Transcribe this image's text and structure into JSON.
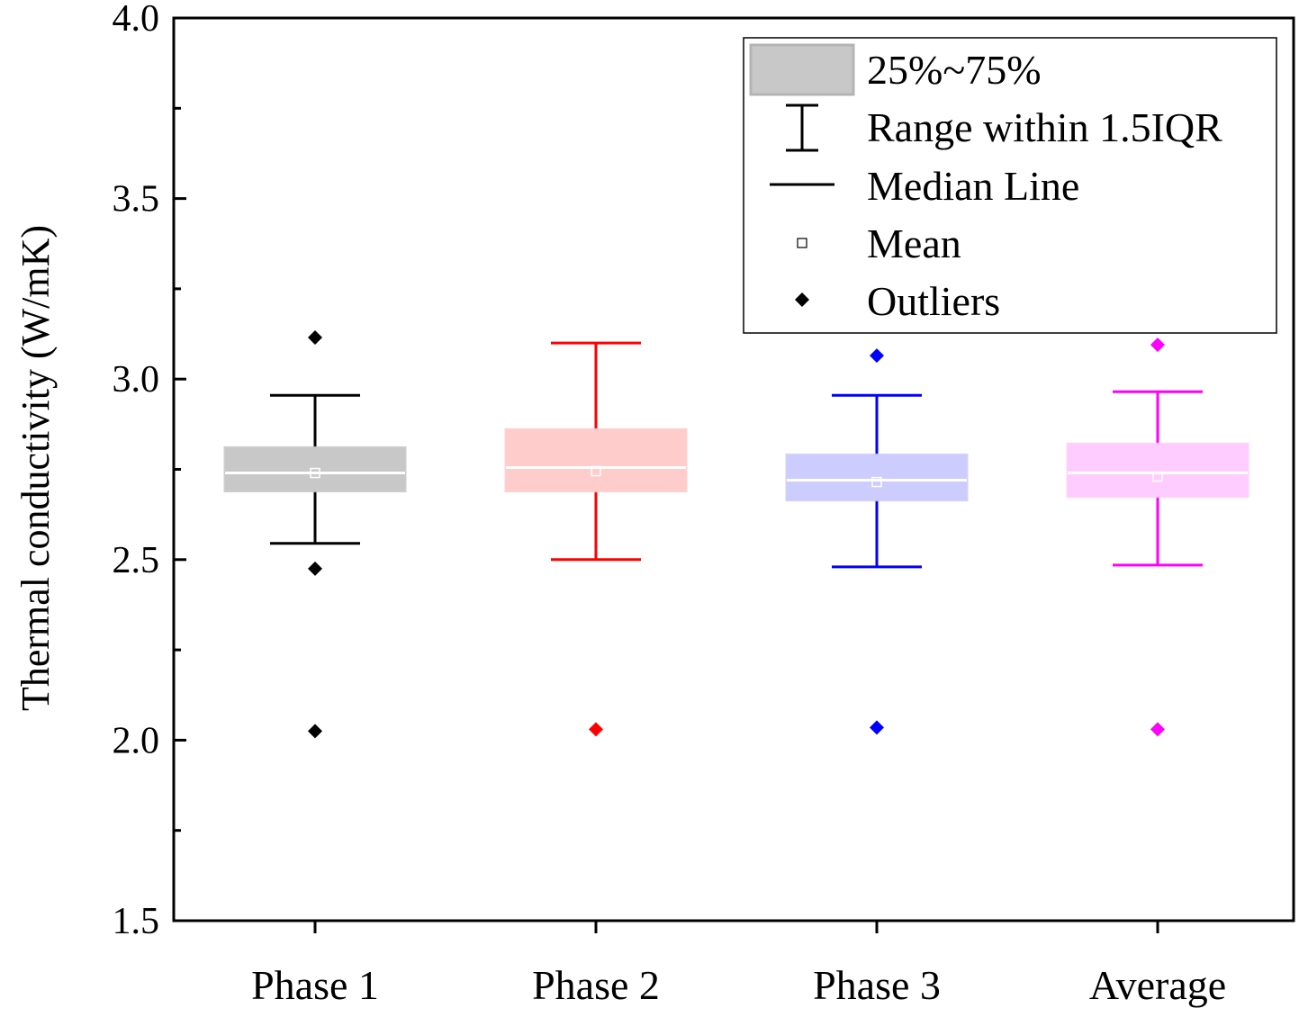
{
  "chart_data": {
    "type": "box",
    "ylabel": "Thermal conductivity (W/mK)",
    "xlabel": "",
    "ylim": [
      1.5,
      4.0
    ],
    "yticks": [
      "1.5",
      "2.0",
      "2.5",
      "3.0",
      "3.5",
      "4.0"
    ],
    "ytick_values": [
      1.5,
      2.0,
      2.5,
      3.0,
      3.5,
      4.0
    ],
    "grid": false,
    "legend_position": "top-right",
    "categories": [
      "Phase 1",
      "Phase 2",
      "Phase 3",
      "Average"
    ],
    "boxes": [
      {
        "category": "Phase 1",
        "color": "#000000",
        "fill": "#c8c8c8",
        "whisker_low": 2.545,
        "q1": 2.69,
        "median": 2.74,
        "q3": 2.81,
        "whisker_high": 2.955,
        "mean": 2.74,
        "outliers": [
          3.115,
          2.475,
          2.025
        ]
      },
      {
        "category": "Phase 2",
        "color": "#ff0000",
        "fill": "#ffcccc",
        "whisker_low": 2.5,
        "q1": 2.69,
        "median": 2.755,
        "q3": 2.86,
        "whisker_high": 3.1,
        "mean": 2.745,
        "outliers": [
          2.03
        ]
      },
      {
        "category": "Phase 3",
        "color": "#0000ff",
        "fill": "#ccccff",
        "whisker_low": 2.48,
        "q1": 2.665,
        "median": 2.72,
        "q3": 2.79,
        "whisker_high": 2.955,
        "mean": 2.715,
        "outliers": [
          3.065,
          2.035
        ]
      },
      {
        "category": "Average",
        "color": "#ff00ff",
        "fill": "#ffccff",
        "whisker_low": 2.485,
        "q1": 2.675,
        "median": 2.74,
        "q3": 2.82,
        "whisker_high": 2.965,
        "mean": 2.73,
        "outliers": [
          3.095,
          2.03
        ]
      }
    ],
    "legend": [
      {
        "label": "25%~75%",
        "symbol": "box"
      },
      {
        "label": "Range within 1.5IQR",
        "symbol": "whisker"
      },
      {
        "label": "Median Line",
        "symbol": "line"
      },
      {
        "label": "Mean",
        "symbol": "open-square"
      },
      {
        "label": "Outliers",
        "symbol": "diamond"
      }
    ]
  }
}
